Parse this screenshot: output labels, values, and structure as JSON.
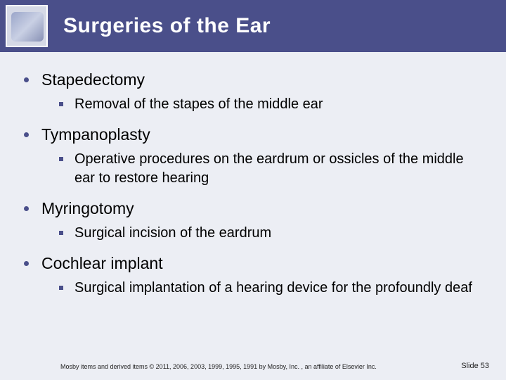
{
  "colors": {
    "header_bg": "#4a4f8a",
    "body_bg": "#eceef4",
    "title_color": "#ffffff",
    "text_color": "#000000",
    "bullet_color": "#4a4f8a"
  },
  "typography": {
    "title_fontsize": 30,
    "bullet_fontsize": 23,
    "sub_fontsize": 20,
    "footer_fontsize": 9,
    "slidenum_fontsize": 11,
    "family": "Arial"
  },
  "header": {
    "title": "Surgeries of the Ear",
    "icon_name": "medical-thumbnail"
  },
  "bullets": [
    {
      "label": "Stapedectomy",
      "subs": [
        "Removal of the stapes of the middle ear"
      ]
    },
    {
      "label": "Tympanoplasty",
      "subs": [
        "Operative procedures on the eardrum or ossicles of the middle ear to restore hearing"
      ]
    },
    {
      "label": "Myringotomy",
      "subs": [
        "Surgical incision of the eardrum"
      ]
    },
    {
      "label": "Cochlear implant",
      "subs": [
        "Surgical implantation of a hearing device for the profoundly deaf"
      ]
    }
  ],
  "footer": {
    "copyright": "Mosby items and derived items © 2011, 2006, 2003, 1999, 1995, 1991 by Mosby, Inc. , an affiliate of Elsevier Inc.",
    "slide_label": "Slide 53"
  }
}
